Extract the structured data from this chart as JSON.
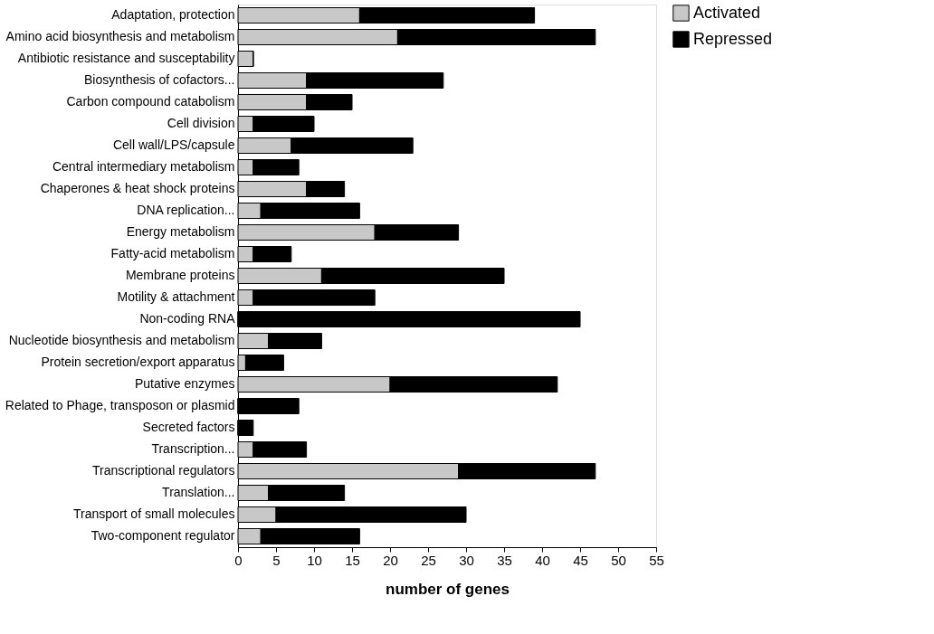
{
  "chart_data": {
    "type": "bar",
    "orientation": "horizontal",
    "stacked": true,
    "xlabel": "number of genes",
    "categories": [
      "Adaptation, protection",
      "Amino acid biosynthesis and metabolism",
      "Antibiotic resistance and susceptability",
      "Biosynthesis of cofactors...",
      "Carbon compound catabolism",
      "Cell division",
      "Cell wall/LPS/capsule",
      "Central intermediary metabolism",
      "Chaperones & heat shock proteins",
      "DNA replication...",
      "Energy metabolism",
      "Fatty-acid metabolism",
      "Membrane proteins",
      "Motility & attachment",
      "Non-coding RNA",
      "Nucleotide biosynthesis and metabolism",
      "Protein secretion/export apparatus",
      "Putative enzymes",
      "Related to Phage, transposon or plasmid",
      "Secreted factors",
      "Transcription...",
      "Transcriptional regulators",
      "Translation...",
      "Transport of small molecules",
      "Two-component regulator"
    ],
    "series": [
      {
        "name": "Activated",
        "color": "#c8c8c8",
        "values": [
          16,
          21,
          2,
          9,
          9,
          2,
          7,
          2,
          9,
          3,
          18,
          2,
          11,
          2,
          0,
          4,
          1,
          20,
          0,
          0,
          2,
          29,
          4,
          5,
          3
        ]
      },
      {
        "name": "Repressed",
        "color": "#000000",
        "values": [
          23,
          26,
          0,
          18,
          6,
          8,
          16,
          6,
          5,
          13,
          11,
          5,
          24,
          16,
          45,
          7,
          5,
          22,
          8,
          2,
          7,
          18,
          10,
          25,
          13
        ]
      }
    ],
    "xlim": [
      0,
      55
    ],
    "xticks": [
      0,
      5,
      10,
      15,
      20,
      25,
      30,
      35,
      40,
      45,
      50,
      55
    ],
    "legend": "top right",
    "grid": false
  }
}
